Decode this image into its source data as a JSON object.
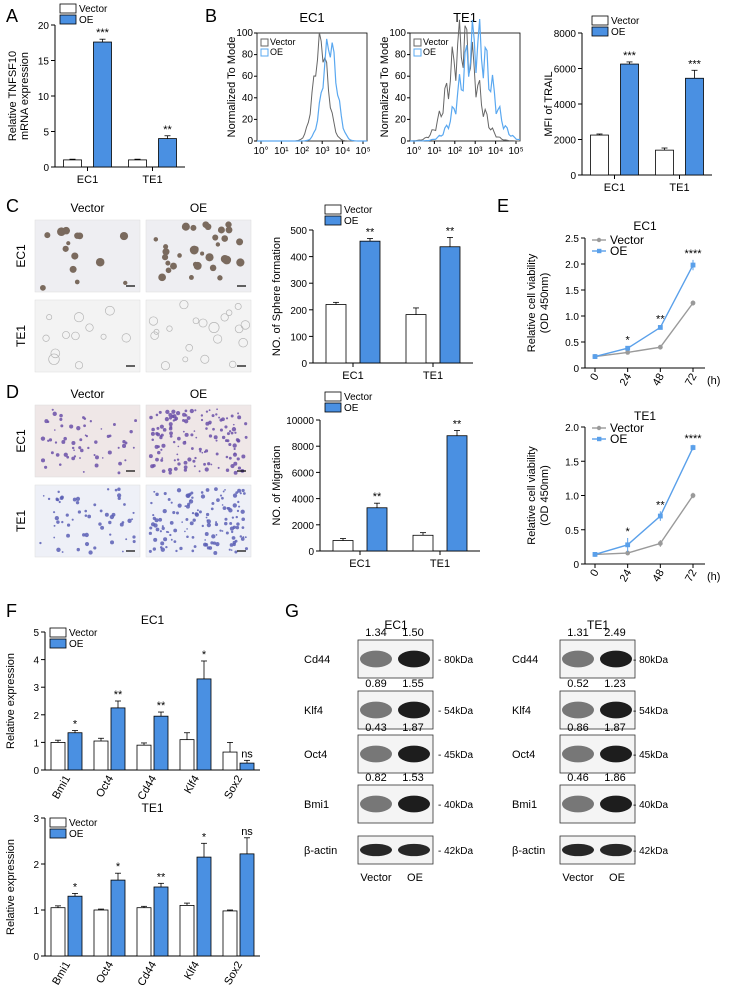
{
  "colors": {
    "vector": "#ffffff",
    "oe": "#4a90e2",
    "oe_line": "#5aa0ea",
    "vector_line": "#9a9a9a",
    "flow_vector": "#666666",
    "flow_oe": "#5aa8f0"
  },
  "panels": {
    "A": "A",
    "B": "B",
    "C": "C",
    "D": "D",
    "E": "E",
    "F": "F",
    "G": "G"
  },
  "legend": {
    "vector": "Vector",
    "oe": "OE"
  },
  "images": {
    "C": {
      "cols": [
        "Vector",
        "OE"
      ],
      "rows": [
        "EC1",
        "TE1"
      ]
    },
    "D": {
      "cols": [
        "Vector",
        "OE"
      ],
      "rows": [
        "EC1",
        "TE1"
      ]
    }
  },
  "flow": {
    "ylabel": "Normalized To Mode",
    "yticks": [
      "0",
      "20",
      "40",
      "60",
      "80",
      "100"
    ],
    "xticks": [
      "10°",
      "10¹",
      "10²",
      "10³",
      "10⁴",
      "10⁵"
    ],
    "titles": [
      "EC1",
      "TE1"
    ],
    "legend": [
      "Vector",
      "OE"
    ]
  },
  "westerns": {
    "ec1": {
      "title": "EC1",
      "lanes": [
        "Vector",
        "OE"
      ],
      "rows": [
        {
          "name": "Cd44",
          "kda": "80kDa",
          "vals": [
            "1.34",
            "1.50"
          ]
        },
        {
          "name": "Klf4",
          "kda": "54kDa",
          "vals": [
            "0.89",
            "1.55"
          ]
        },
        {
          "name": "Oct4",
          "kda": "45kDa",
          "vals": [
            "0.43",
            "1.87"
          ]
        },
        {
          "name": "Bmi1",
          "kda": "40kDa",
          "vals": [
            "0.82",
            "1.53"
          ]
        },
        {
          "name": "β-actin",
          "kda": "42kDa",
          "vals": []
        }
      ]
    },
    "te1": {
      "title": "TE1",
      "lanes": [
        "Vector",
        "OE"
      ],
      "rows": [
        {
          "name": "Cd44",
          "kda": "80kDa",
          "vals": [
            "1.31",
            "2.49"
          ]
        },
        {
          "name": "Klf4",
          "kda": "54kDa",
          "vals": [
            "0.52",
            "1.23"
          ]
        },
        {
          "name": "Oct4",
          "kda": "45kDa",
          "vals": [
            "0.86",
            "1.87"
          ]
        },
        {
          "name": "Bmi1",
          "kda": "40kDa",
          "vals": [
            "0.46",
            "1.86"
          ]
        },
        {
          "name": "β-actin",
          "kda": "42kDa",
          "vals": []
        }
      ]
    }
  },
  "chart_data": [
    {
      "id": "A",
      "type": "bar",
      "ylabel": "Relative TNFSF10 mRNA expression",
      "categories": [
        "EC1",
        "TE1"
      ],
      "ylim": [
        0,
        20
      ],
      "yticks": [
        0,
        5,
        10,
        15,
        20
      ],
      "series": [
        {
          "name": "Vector",
          "values": [
            1.0,
            1.0
          ],
          "err": [
            0.1,
            0.1
          ]
        },
        {
          "name": "OE",
          "values": [
            17.6,
            4.0
          ],
          "err": [
            0.4,
            0.4
          ]
        }
      ],
      "stars": [
        "***",
        "**"
      ]
    },
    {
      "id": "B",
      "type": "bar",
      "ylabel": "MFI of TRAIL",
      "categories": [
        "EC1",
        "TE1"
      ],
      "ylim": [
        0,
        8000
      ],
      "yticks": [
        0,
        2000,
        4000,
        6000,
        8000
      ],
      "series": [
        {
          "name": "Vector",
          "values": [
            2250,
            1400
          ],
          "err": [
            60,
            120
          ]
        },
        {
          "name": "OE",
          "values": [
            6250,
            5450
          ],
          "err": [
            120,
            450
          ]
        }
      ],
      "stars": [
        "***",
        "***"
      ]
    },
    {
      "id": "C",
      "type": "bar",
      "ylabel": "NO. of Sphere formation",
      "categories": [
        "EC1",
        "TE1"
      ],
      "ylim": [
        0,
        500
      ],
      "yticks": [
        0,
        100,
        200,
        300,
        400,
        500
      ],
      "series": [
        {
          "name": "Vector",
          "values": [
            220,
            182
          ],
          "err": [
            8,
            25
          ]
        },
        {
          "name": "OE",
          "values": [
            458,
            437
          ],
          "err": [
            10,
            35
          ]
        }
      ],
      "stars": [
        "**",
        "**"
      ]
    },
    {
      "id": "D",
      "type": "bar",
      "ylabel": "NO. of Migration",
      "categories": [
        "EC1",
        "TE1"
      ],
      "ylim": [
        0,
        10000
      ],
      "yticks": [
        0,
        2000,
        4000,
        6000,
        8000,
        10000
      ],
      "series": [
        {
          "name": "Vector",
          "values": [
            800,
            1200
          ],
          "err": [
            150,
            200
          ]
        },
        {
          "name": "OE",
          "values": [
            3300,
            8800
          ],
          "err": [
            350,
            400
          ]
        }
      ],
      "stars": [
        "**",
        "**"
      ]
    },
    {
      "id": "E1",
      "type": "line",
      "title": "EC1",
      "ylabel": "Relative cell viability (OD 450nm)",
      "x": [
        0,
        24,
        48,
        72
      ],
      "xunit": "(h)",
      "ylim": [
        0,
        2.5
      ],
      "yticks": [
        0,
        0.5,
        1.0,
        1.5,
        2.0,
        2.5
      ],
      "series": [
        {
          "name": "Vector",
          "values": [
            0.22,
            0.3,
            0.4,
            1.25
          ],
          "err": [
            0.02,
            0.03,
            0.03,
            0.05
          ]
        },
        {
          "name": "OE",
          "values": [
            0.22,
            0.38,
            0.78,
            1.98
          ],
          "err": [
            0.02,
            0.03,
            0.04,
            0.1
          ]
        }
      ],
      "stars": [
        "",
        "*",
        "**",
        "****"
      ]
    },
    {
      "id": "E2",
      "type": "line",
      "title": "TE1",
      "ylabel": "Relative cell viability (OD 450nm)",
      "x": [
        0,
        24,
        48,
        72
      ],
      "xunit": "(h)",
      "ylim": [
        0,
        2.0
      ],
      "yticks": [
        0,
        0.5,
        1.0,
        1.5,
        2.0
      ],
      "series": [
        {
          "name": "Vector",
          "values": [
            0.14,
            0.16,
            0.3,
            1.0
          ],
          "err": [
            0.01,
            0.02,
            0.05,
            0.04
          ]
        },
        {
          "name": "OE",
          "values": [
            0.14,
            0.28,
            0.7,
            1.7
          ],
          "err": [
            0.01,
            0.1,
            0.07,
            0.04
          ]
        }
      ],
      "stars": [
        "",
        "*",
        "**",
        "****"
      ]
    },
    {
      "id": "F1",
      "type": "bar",
      "title": "EC1",
      "ylabel": "Relative expression",
      "categories": [
        "Bmi1",
        "Oct4",
        "Cd44",
        "Klf4",
        "Sox2"
      ],
      "ylim": [
        0,
        5
      ],
      "yticks": [
        0,
        1,
        2,
        3,
        4,
        5
      ],
      "series": [
        {
          "name": "Vector",
          "values": [
            1.0,
            1.05,
            0.9,
            1.1,
            0.65
          ],
          "err": [
            0.08,
            0.1,
            0.08,
            0.25,
            0.35
          ]
        },
        {
          "name": "OE",
          "values": [
            1.35,
            2.25,
            1.95,
            3.3,
            0.25
          ],
          "err": [
            0.08,
            0.25,
            0.15,
            0.65,
            0.1
          ]
        }
      ],
      "stars": [
        "*",
        "**",
        "**",
        "*",
        "ns"
      ]
    },
    {
      "id": "F2",
      "type": "bar",
      "title": "TE1",
      "ylabel": "Relative expression",
      "categories": [
        "Bmi1",
        "Oct4",
        "Cd44",
        "Klf4",
        "Sox2"
      ],
      "ylim": [
        0,
        3
      ],
      "yticks": [
        0,
        1,
        2,
        3
      ],
      "series": [
        {
          "name": "Vector",
          "values": [
            1.05,
            1.0,
            1.05,
            1.1,
            0.98
          ],
          "err": [
            0.04,
            0.02,
            0.03,
            0.05,
            0.02
          ]
        },
        {
          "name": "OE",
          "values": [
            1.3,
            1.65,
            1.5,
            2.15,
            2.22
          ],
          "err": [
            0.06,
            0.15,
            0.08,
            0.3,
            0.35
          ]
        }
      ],
      "stars": [
        "*",
        "*",
        "**",
        "*",
        "ns"
      ]
    }
  ]
}
